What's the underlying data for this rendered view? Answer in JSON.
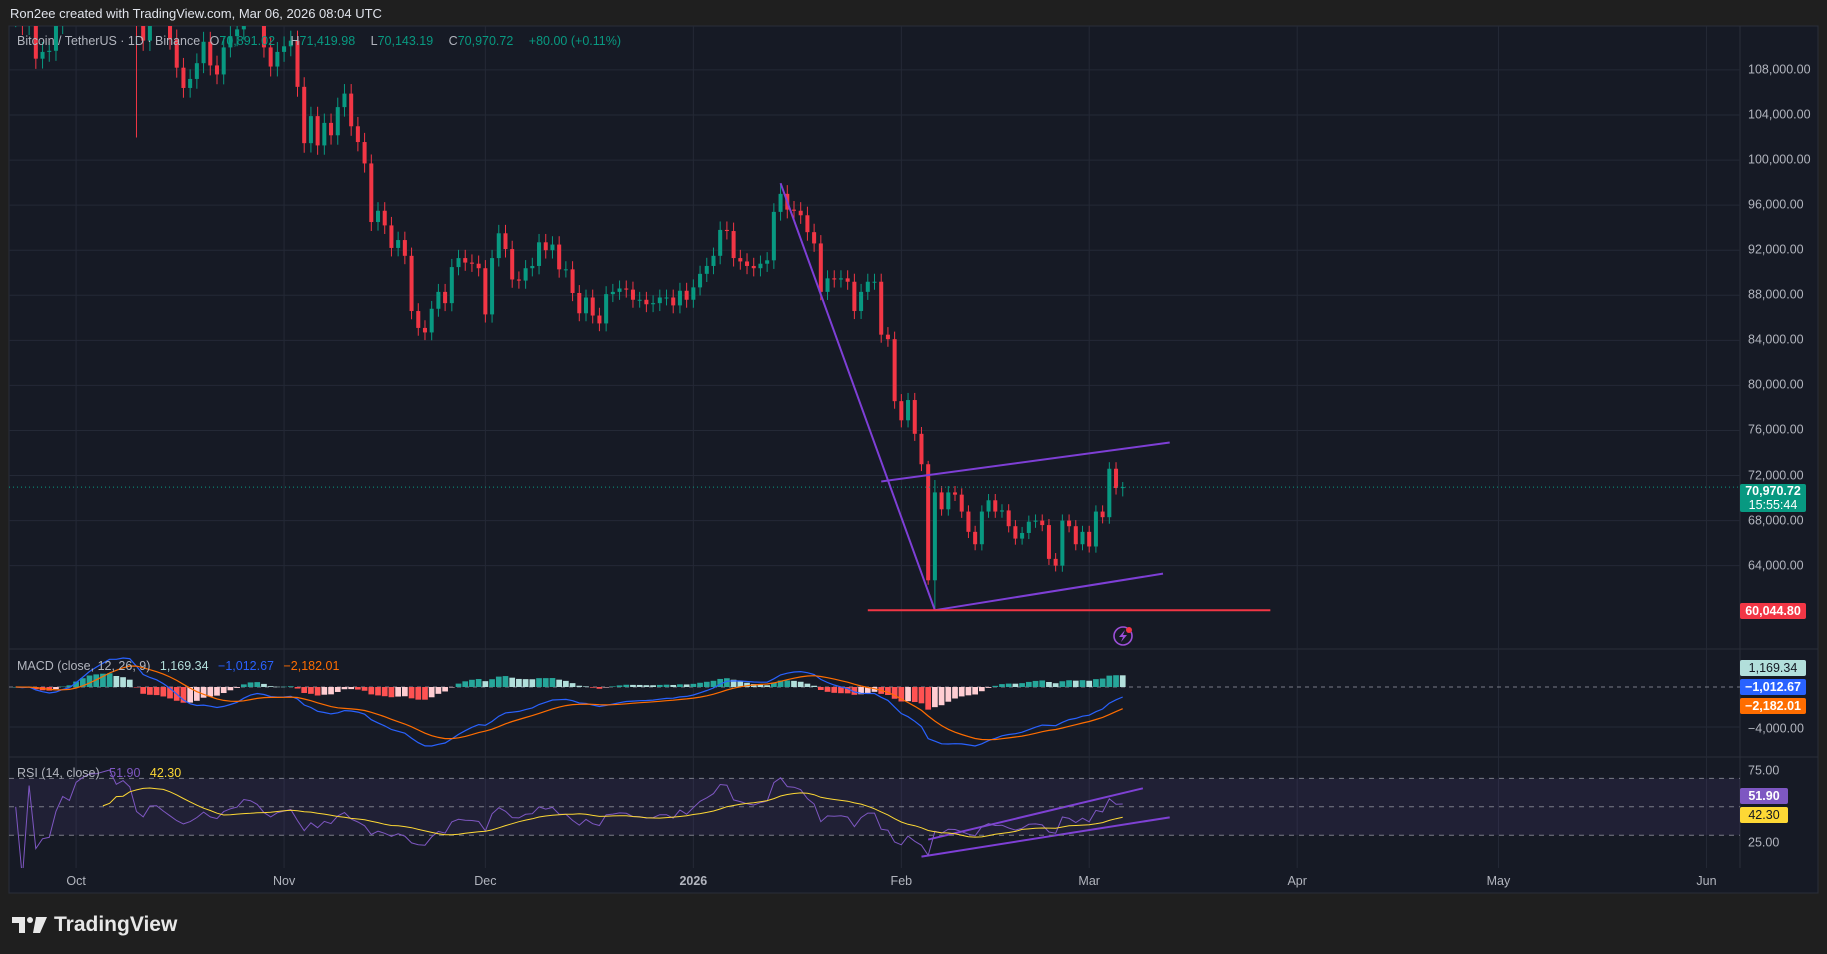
{
  "header": {
    "credit": "Ron2ee created with TradingView.com, Mar 06, 2026 08:04 UTC"
  },
  "legend": {
    "symbol": "Bitcoin / TetherUS · 1D · Binance",
    "o_label": "O",
    "o": "70,891.02",
    "h_label": "H",
    "h": "71,419.98",
    "l_label": "L",
    "l": "70,143.19",
    "c_label": "C",
    "c": "70,970.72",
    "change": "+80.00 (+0.11%)"
  },
  "macd": {
    "label": "MACD (close, 12, 26, 9)",
    "hist": "1,169.34",
    "macd": "−1,012.67",
    "signal": "−2,182.01",
    "fast": 12,
    "slow": 26,
    "signal_len": 9
  },
  "rsi": {
    "label": "RSI (14, close)",
    "rsi": "51.90",
    "ma": "42.30",
    "length": 14,
    "levels": [
      70,
      50,
      30
    ]
  },
  "price_axis": {
    "ticks": [
      {
        "value": 108000,
        "label": "108,000.00"
      },
      {
        "value": 104000,
        "label": "104,000.00"
      },
      {
        "value": 100000,
        "label": "100,000.00"
      },
      {
        "value": 96000,
        "label": "96,000.00"
      },
      {
        "value": 92000,
        "label": "92,000.00"
      },
      {
        "value": 88000,
        "label": "88,000.00"
      },
      {
        "value": 84000,
        "label": "84,000.00"
      },
      {
        "value": 80000,
        "label": "80,000.00"
      },
      {
        "value": 76000,
        "label": "76,000.00"
      },
      {
        "value": 72000,
        "label": "72,000.00"
      },
      {
        "value": 68000,
        "label": "68,000.00"
      },
      {
        "value": 64000,
        "label": "64,000.00"
      }
    ],
    "last_price": "70,970.72",
    "countdown": "15:55:44",
    "level_label": "60,044.80"
  },
  "macd_axis": {
    "ticks": [
      "−4,000.00"
    ]
  },
  "rsi_axis": {
    "ticks": [
      "75.00",
      "25.00"
    ]
  },
  "time_axis": {
    "ticks": [
      {
        "label": "Oct",
        "date": "2025-10-01"
      },
      {
        "label": "Nov",
        "date": "2025-11-01"
      },
      {
        "label": "Dec",
        "date": "2025-12-01"
      },
      {
        "label": "2026",
        "date": "2026-01-01"
      },
      {
        "label": "Feb",
        "date": "2026-02-01"
      },
      {
        "label": "Mar",
        "date": "2026-03-01"
      },
      {
        "label": "Apr",
        "date": "2026-04-01"
      },
      {
        "label": "May",
        "date": "2026-05-01"
      },
      {
        "label": "Jun",
        "date": "2026-06-01"
      }
    ]
  },
  "colors": {
    "up": "#089981",
    "down": "#f23645",
    "background": "#161a25",
    "grid": "#242936",
    "macd_line": "#2962ff",
    "signal_line": "#ff6d00",
    "hist_up_strong": "#26a69a",
    "hist_up_weak": "#b2dfdb",
    "hist_down_strong": "#ff5252",
    "hist_down_weak": "#ffcdd2",
    "rsi_line": "#7e57c2",
    "rsi_ma": "#fdd835",
    "drawing": "#7e3fd6",
    "level_line": "#f23645"
  },
  "branding": {
    "logo_text": "TradingView"
  },
  "chart_data": {
    "type": "candlestick",
    "title": "Bitcoin / TetherUS · 1D · Binance",
    "interval": "1D",
    "xlim": [
      "2025-09-21",
      "2026-06-06"
    ],
    "ylim": [
      56600,
      111900
    ],
    "macd_ylim": [
      -7000,
      3800
    ],
    "rsi_ylim": [
      7,
      85
    ],
    "grid": true,
    "months": [
      {
        "month": "2025-09",
        "first_day": 22,
        "candles": [
          112700,
          112000,
          113300,
          109000,
          109600,
          109700,
          112100,
          114400,
          113800
        ]
      },
      {
        "month": "2025-10",
        "first_day": 1,
        "candles": [
          118600,
          120600,
          122300,
          122400,
          123500,
          124700,
          121400,
          123300,
          121700,
          [
            121700,
            122500,
            102000,
            113200
          ],
          110600,
          115200,
          115300,
          113000,
          110700,
          108200,
          106400,
          107200,
          108600,
          110500,
          108400,
          107600,
          110000,
          111000,
          111600,
          114500,
          114100,
          112900,
          110000,
          108300,
          109600
        ]
      },
      {
        "month": "2025-11",
        "first_day": 1,
        "candles": [
          110100,
          110600,
          106500,
          101500,
          103900,
          101300,
          103300,
          102200,
          104700,
          105900,
          103000,
          101600,
          99700,
          94500,
          95500,
          94200,
          92200,
          92900,
          91500,
          86600,
          85100,
          84700,
          86800,
          88300,
          87300,
          90500,
          91300,
          90900,
          90800,
          90400
        ]
      },
      {
        "month": "2025-12",
        "first_day": 1,
        "candles": [
          86300,
          91300,
          93500,
          92100,
          89400,
          89300,
          90400,
          90600,
          92700,
          92000,
          92500,
          90300,
          90300,
          88200,
          86400,
          87800,
          86200,
          85500,
          88100,
          88300,
          88600,
          88500,
          87600,
          87600,
          87200,
          87300,
          87800,
          87800,
          87100,
          88400,
          87600
        ]
      },
      {
        "month": "2026-01",
        "first_day": 1,
        "candles": [
          88700,
          89900,
          90600,
          91500,
          93800,
          93700,
          91300,
          91000,
          90600,
          90400,
          90800,
          91100,
          95400,
          97000,
          95600,
          95500,
          95100,
          93600,
          92600,
          88300,
          89500,
          89400,
          89500,
          89200,
          86600,
          88300,
          89200,
          89200,
          84500,
          84100,
          78600
        ]
      },
      {
        "month": "2026-02",
        "first_day": 1,
        "candles": [
          76900,
          78700,
          75700,
          73000,
          [
            73000,
            73300,
            62300,
            62700
          ],
          [
            62700,
            71600,
            60044.8,
            70500
          ],
          69000,
          70500,
          70300,
          68800,
          67000,
          65900,
          68800,
          69800,
          68800,
          68900,
          67500,
          66400,
          66900,
          67900,
          68000,
          67600,
          64600,
          64000,
          68000,
          67500,
          65900,
          67000
        ]
      },
      {
        "month": "2026-03",
        "first_day": 1,
        "candles": [
          65700,
          68800,
          68300,
          72600,
          70890.72,
          [
            70891.02,
            71419.98,
            70143.19,
            70970.72
          ]
        ]
      }
    ],
    "last_close": 70970.72,
    "drawings": [
      {
        "kind": "trendline",
        "pane": "price",
        "from": [
          "2026-01-14",
          97950
        ],
        "to": [
          "2026-02-06",
          60044.8
        ]
      },
      {
        "kind": "trendline",
        "pane": "price",
        "from": [
          "2026-01-29",
          71470
        ],
        "to": [
          "2026-03-13",
          74930
        ]
      },
      {
        "kind": "trendline",
        "pane": "price",
        "from": [
          "2026-02-06",
          60044.8
        ],
        "to": [
          "2026-03-12",
          63290
        ]
      },
      {
        "kind": "horizontal",
        "pane": "price",
        "from": [
          "2026-01-27",
          60044.8
        ],
        "to": [
          "2026-03-28",
          60044.8
        ],
        "color": "level"
      },
      {
        "kind": "trendline",
        "pane": "rsi",
        "from": [
          "2026-02-05",
          27
        ],
        "to": [
          "2026-03-09",
          63
        ]
      },
      {
        "kind": "trendline",
        "pane": "rsi",
        "from": [
          "2026-02-04",
          15
        ],
        "to": [
          "2026-03-13",
          42.6
        ]
      }
    ]
  }
}
